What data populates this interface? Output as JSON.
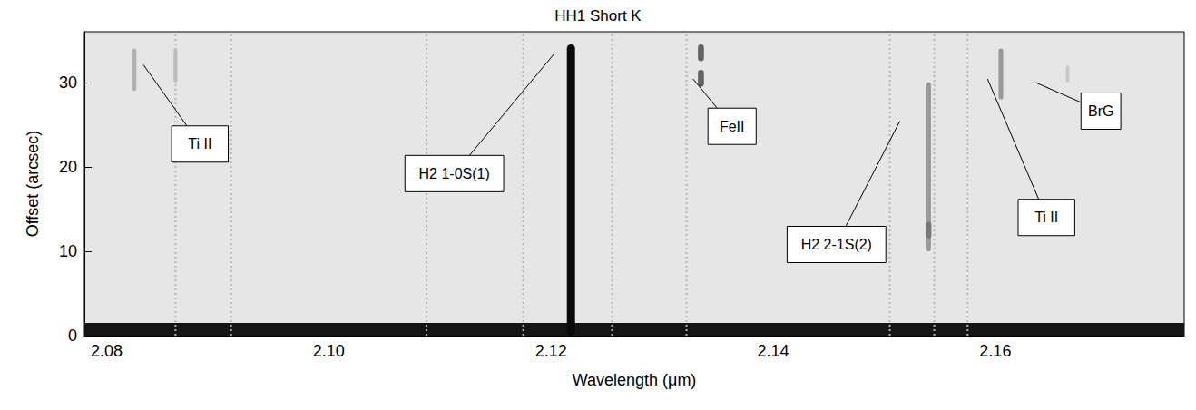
{
  "chart_data": {
    "type": "spectrum_image",
    "title": "HH1 Short K",
    "x_label": "Wavelength (μm)",
    "y_label": "Offset (arcsec)",
    "xlim": [
      2.078,
      2.177
    ],
    "xticks": [
      2.08,
      {
        "value": 2.1,
        "label": "2.10"
      },
      2.12,
      2.14,
      2.16
    ],
    "ylim": [
      0,
      36
    ],
    "yticks": [
      0,
      10,
      20,
      30
    ],
    "grid": false,
    "continuum": {
      "offset_range": [
        0,
        1.5
      ],
      "intensity": 0.95
    },
    "sky_residuals": [
      2.0862,
      2.0912,
      2.1088,
      2.1175,
      2.1255,
      2.1322,
      2.1505,
      2.1545,
      2.1575
    ],
    "lines": [
      {
        "wavelength": 2.1218,
        "offset_range": [
          0,
          34.5
        ],
        "intensity": 1.0
      },
      {
        "wavelength": 2.1335,
        "offset_range": [
          29.5,
          31.5
        ],
        "intensity": 0.6
      },
      {
        "wavelength": 2.1335,
        "offset_range": [
          32.5,
          34.5
        ],
        "intensity": 0.6
      },
      {
        "wavelength": 2.154,
        "offset_range": [
          10,
          30
        ],
        "intensity": 0.35
      },
      {
        "wavelength": 2.154,
        "offset_range": [
          11.5,
          13.5
        ],
        "intensity": 0.5
      },
      {
        "wavelength": 2.0825,
        "offset_range": [
          29,
          34
        ],
        "intensity": 0.25
      },
      {
        "wavelength": 2.0862,
        "offset_range": [
          30,
          34
        ],
        "intensity": 0.2
      },
      {
        "wavelength": 2.1605,
        "offset_range": [
          28,
          34
        ],
        "intensity": 0.35
      },
      {
        "wavelength": 2.1665,
        "offset_range": [
          30,
          32
        ],
        "intensity": 0.15
      }
    ],
    "annotations": [
      {
        "text": "Ti II",
        "target": [
          2.0833,
          32.1
        ],
        "text_at": [
          2.0884,
          22.7
        ]
      },
      {
        "text": "H2 1-0S(1)",
        "target": [
          2.1203,
          33.4
        ],
        "text_at": [
          2.1113,
          19.2
        ]
      },
      {
        "text": "FeII",
        "target": [
          2.1328,
          30.4
        ],
        "text_at": [
          2.1363,
          24.8
        ]
      },
      {
        "text": "H2 2-1S(2)",
        "target": [
          2.1514,
          25.4
        ],
        "text_at": [
          2.1457,
          10.8
        ]
      },
      {
        "text": "Ti II",
        "target": [
          2.1593,
          30.4
        ],
        "text_at": [
          2.1646,
          14.0
        ]
      },
      {
        "text": "BrG",
        "target": [
          2.1636,
          30.0
        ],
        "text_at": [
          2.1695,
          26.6
        ]
      }
    ]
  }
}
